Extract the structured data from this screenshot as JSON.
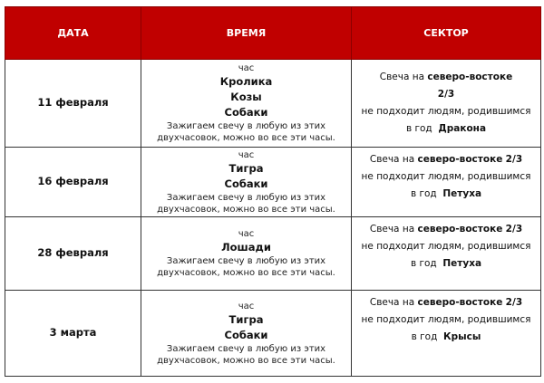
{
  "table": {
    "headers": [
      "ДАТА",
      "ВРЕМЯ",
      "СЕКТОР"
    ],
    "header_color": "#c00000",
    "rows": [
      {
        "date": "11 февраля",
        "time_prefix": "час",
        "hours": [
          "Кролика",
          "Козы",
          "Собаки"
        ],
        "note_line1": "Зажигаем свечу в любую из этих",
        "note_line2": "двухчасовок, можно во все эти часы.",
        "sector_prefix": "Свеча на",
        "sector_direction": "северо-востоке",
        "sector_fraction": "2/3",
        "sector_fraction_newline": true,
        "sector_warning": "не подходит людям, родившимся",
        "sector_year_prefix": "в год",
        "sector_year_animal": "Дракона"
      },
      {
        "date": "16 февраля",
        "time_prefix": "час",
        "hours": [
          "Тигра",
          "Собаки"
        ],
        "note_line1": "Зажигаем свечу в любую из этих",
        "note_line2": "двухчасовок, можно во все эти часы.",
        "sector_prefix": "Свеча на",
        "sector_direction": "северо-востоке",
        "sector_fraction": "2/3",
        "sector_fraction_newline": false,
        "sector_warning": "не подходит людям, родившимся",
        "sector_year_prefix": "в год",
        "sector_year_animal": "Петуха"
      },
      {
        "date": "28 февраля",
        "time_prefix": "час",
        "hours": [
          "Лошади"
        ],
        "note_line1": "Зажигаем свечу в любую из этих",
        "note_line2": "двухчасовок, можно во все эти часы.",
        "sector_prefix": "Свеча на",
        "sector_direction": "северо-востоке",
        "sector_fraction": "2/3",
        "sector_fraction_newline": false,
        "sector_warning": "не подходит людям, родившимся",
        "sector_year_prefix": "в год",
        "sector_year_animal": "Петуха"
      },
      {
        "date": "3 марта",
        "time_prefix": "час",
        "hours": [
          "Тигра",
          "Собаки"
        ],
        "note_line1": "Зажигаем свечу в любую из этих",
        "note_line2": "двухчасовок, можно во все эти часы.",
        "sector_prefix": "Свеча на",
        "sector_direction": "северо-востоке",
        "sector_fraction": "2/3",
        "sector_fraction_newline": false,
        "sector_warning": "не подходит людям, родившимся",
        "sector_year_prefix": "в год",
        "sector_year_animal": "Крысы"
      }
    ]
  }
}
